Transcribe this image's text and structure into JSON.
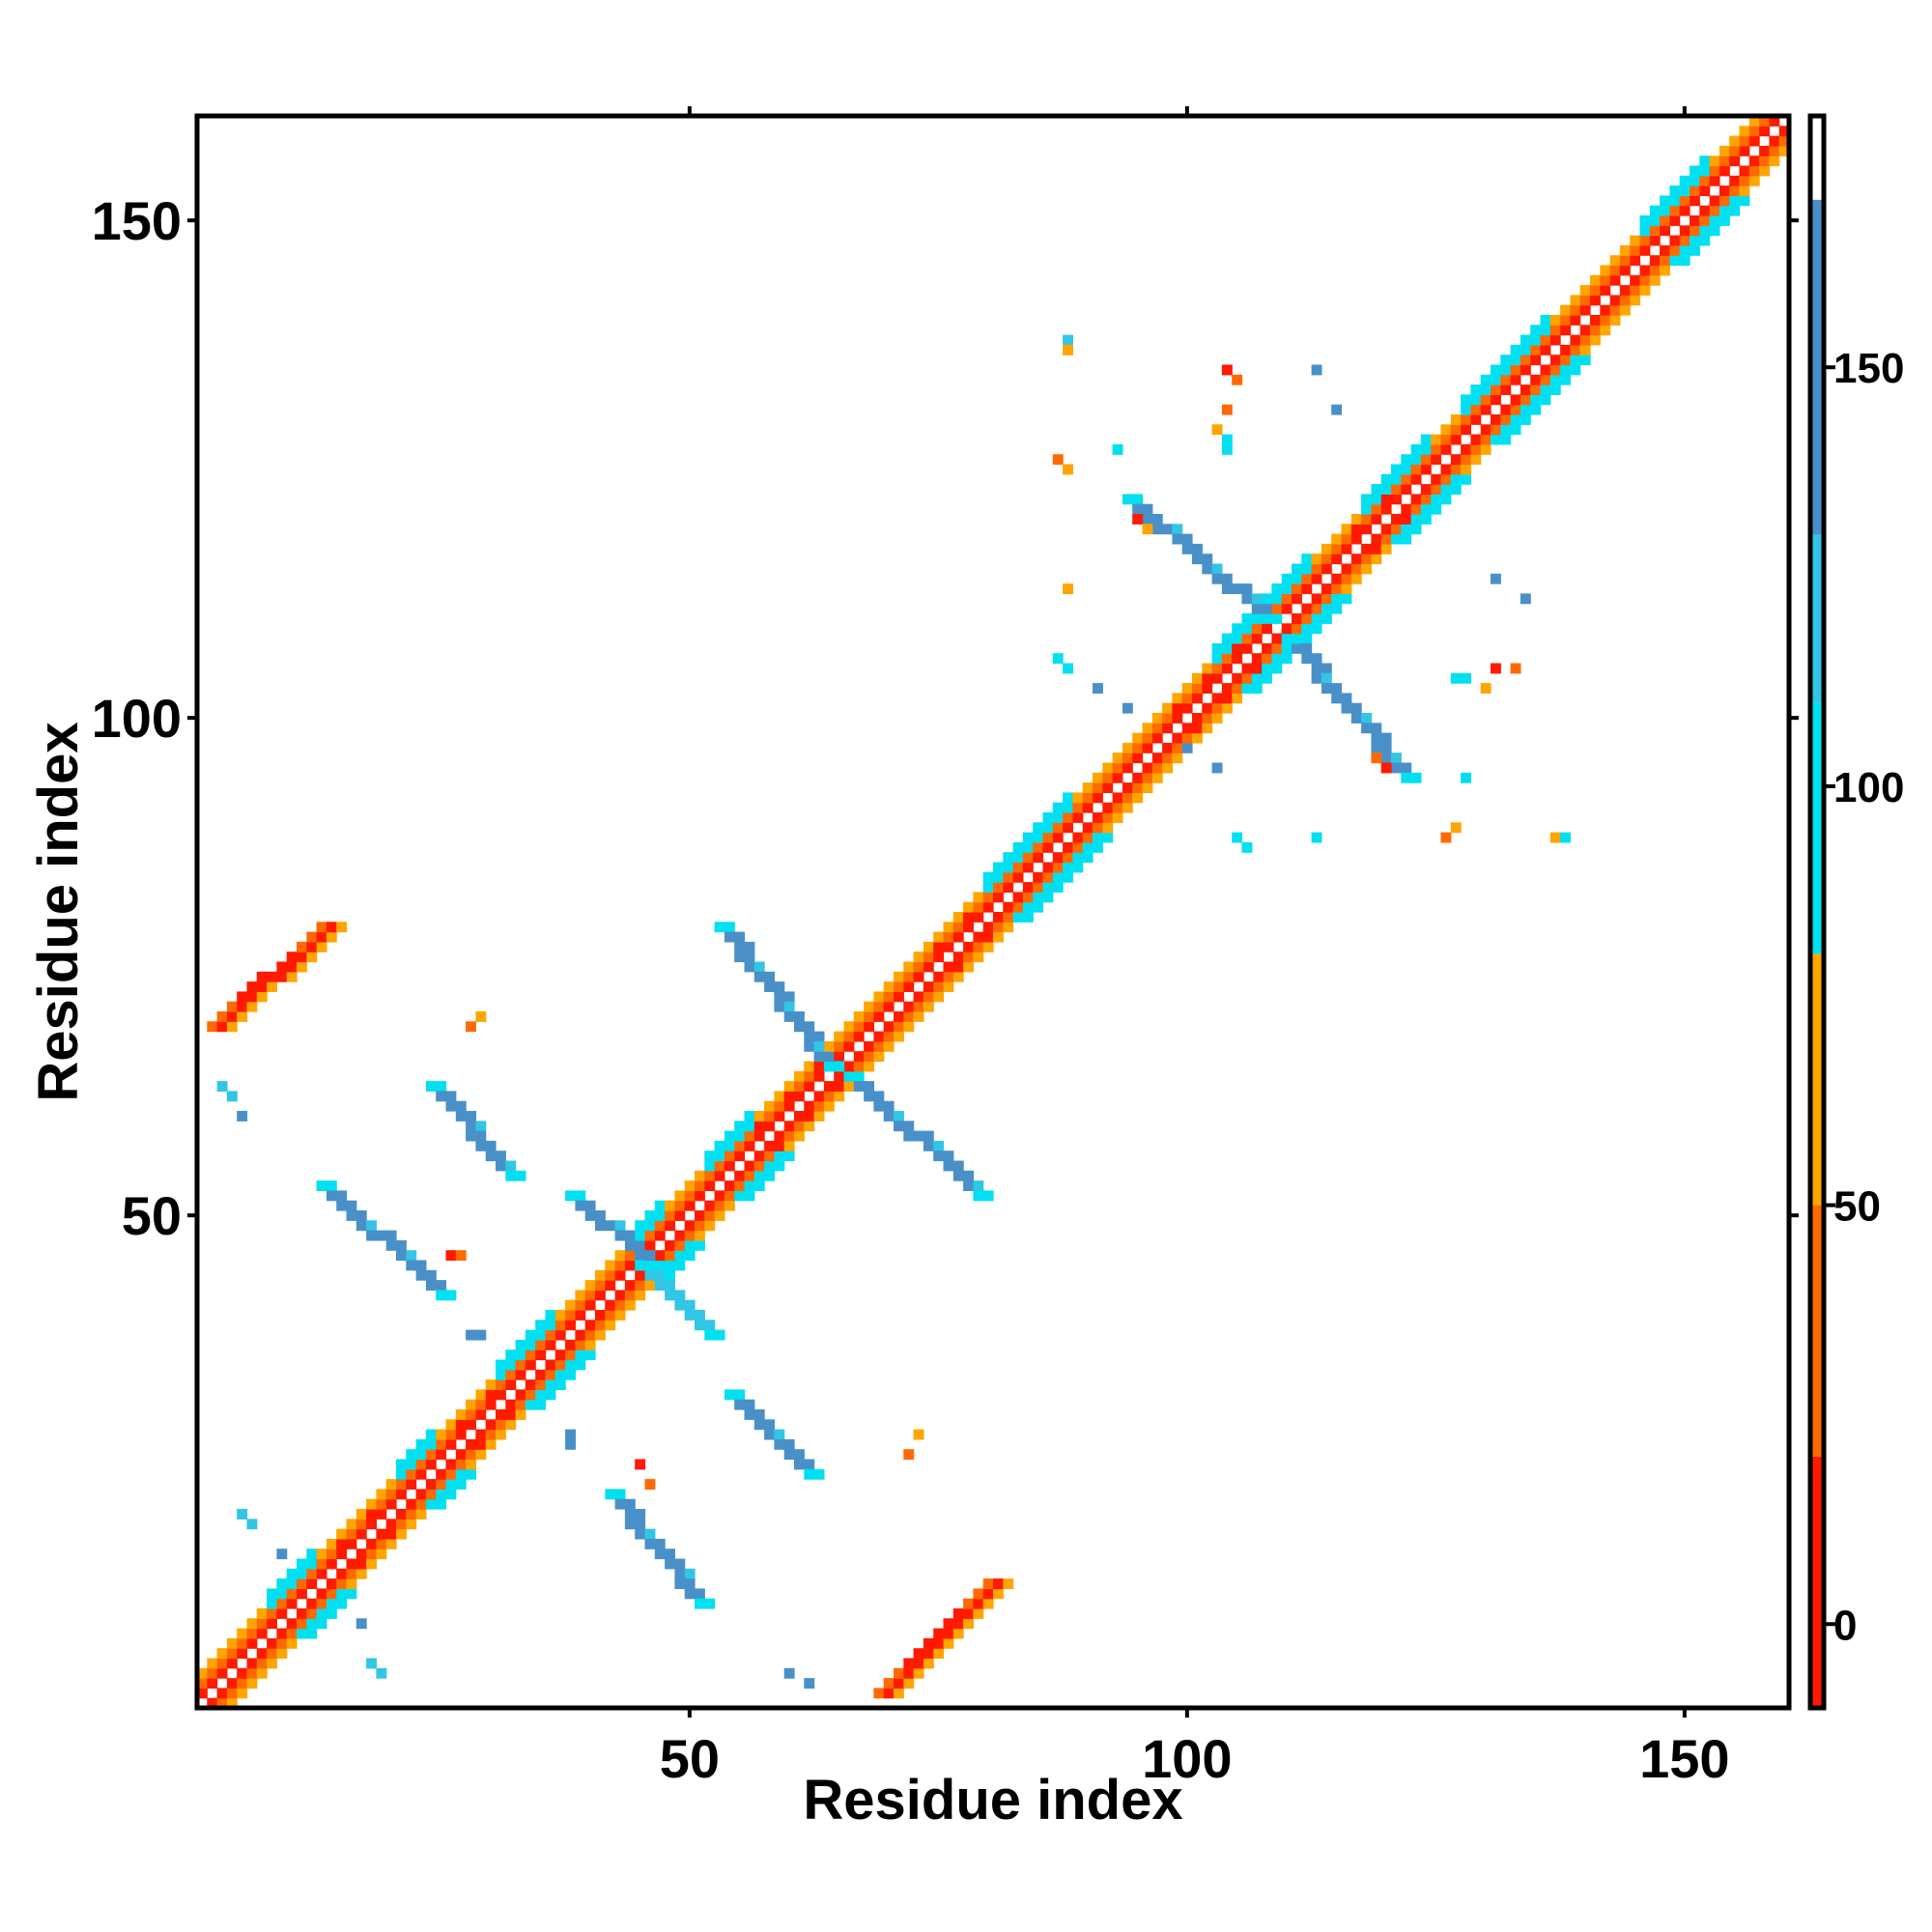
{
  "chart_data": {
    "type": "heatmap",
    "title": "",
    "xlabel": "Residue index",
    "ylabel": "Residue index",
    "xlim": [
      1,
      160
    ],
    "ylim": [
      1,
      160
    ],
    "x_ticks": [
      50,
      100,
      150
    ],
    "y_ticks": [
      50,
      100,
      150
    ],
    "grid": false,
    "colorbar": {
      "range": [
        -10,
        180
      ],
      "ticks": [
        0,
        50,
        100,
        150
      ],
      "segments": [
        {
          "from": -10,
          "to": 20,
          "color": "#ff1a00"
        },
        {
          "from": 20,
          "to": 50,
          "color": "#ff6a00"
        },
        {
          "from": 50,
          "to": 80,
          "color": "#ffa500"
        },
        {
          "from": 80,
          "to": 110,
          "color": "#00e0f0"
        },
        {
          "from": 110,
          "to": 130,
          "color": "#33c5e5"
        },
        {
          "from": 130,
          "to": 170,
          "color": "#4a90c8"
        },
        {
          "from": 170,
          "to": 180,
          "color": "#ffffff"
        }
      ]
    },
    "color_classes": {
      "R": "#ff1a00",
      "O": "#ff6a00",
      "A": "#ffa500",
      "C": "#00e0f0",
      "L": "#33c5e5",
      "B": "#4a90c8"
    },
    "diagonal": {
      "from": 1,
      "to": 160,
      "bands": [
        {
          "offset": 1,
          "color": "R"
        },
        {
          "offset": 2,
          "color": "O"
        },
        {
          "offset": 3,
          "color": "A"
        }
      ],
      "cyan_segments": [
        [
          8,
          12
        ],
        [
          21,
          24
        ],
        [
          31,
          36
        ],
        [
          44,
          47
        ],
        [
          52,
          56
        ],
        [
          80,
          88
        ],
        [
          103,
          112
        ],
        [
          118,
          124
        ],
        [
          128,
          136
        ],
        [
          146,
          152
        ]
      ],
      "red_segments": [
        [
          14,
          19
        ],
        [
          25,
          30
        ],
        [
          56,
          64
        ],
        [
          74,
          78
        ],
        [
          98,
          107
        ],
        [
          117,
          120
        ]
      ]
    },
    "regions": [
      {
        "name": "beta-sheet-antiparallel-1",
        "color": "B",
        "x": [
          38,
          46
        ],
        "y": [
          45,
          52
        ],
        "direction": "anti",
        "width": 2
      },
      {
        "name": "beta-sheet-antiparallel-2",
        "color": "L",
        "x": [
          45,
          52
        ],
        "y": [
          38,
          45
        ],
        "direction": "anti",
        "width": 2
      },
      {
        "name": "beta-sheet-antiparallel-3",
        "color": "B",
        "x": [
          53,
          64
        ],
        "y": [
          65,
          79
        ],
        "direction": "anti",
        "width": 2
      },
      {
        "name": "beta-sheet-antiparallel-4",
        "color": "B",
        "x": [
          66,
          79
        ],
        "y": [
          52,
          64
        ],
        "direction": "anti",
        "width": 2
      },
      {
        "name": "beta-sheet-antiparallel-5",
        "color": "B",
        "x": [
          94,
          108
        ],
        "y": [
          110,
          122
        ],
        "direction": "anti",
        "width": 2
      },
      {
        "name": "beta-sheet-antiparallel-6",
        "color": "B",
        "x": [
          110,
          122
        ],
        "y": [
          94,
          108
        ],
        "direction": "anti",
        "width": 2
      },
      {
        "name": "beta-strand-pair-a",
        "color": "B",
        "x": [
          24,
          32
        ],
        "y": [
          54,
          63
        ],
        "direction": "anti",
        "width": 2
      },
      {
        "name": "beta-strand-pair-b",
        "color": "B",
        "x": [
          13,
          25
        ],
        "y": [
          42,
          53
        ],
        "direction": "anti",
        "width": 2
      },
      {
        "name": "beta-strand-pair-c",
        "color": "B",
        "x": [
          54,
          62
        ],
        "y": [
          24,
          32
        ],
        "direction": "anti",
        "width": 2
      },
      {
        "name": "beta-strand-pair-d",
        "color": "B",
        "x": [
          42,
          51
        ],
        "y": [
          11,
          22
        ],
        "direction": "anti",
        "width": 2
      },
      {
        "name": "parallel-contact-top",
        "color": "O",
        "x": [
          2,
          13
        ],
        "y": [
          69,
          79
        ],
        "direction": "par",
        "width": 3
      },
      {
        "name": "parallel-contact-bottom",
        "color": "O",
        "x": [
          69,
          80
        ],
        "y": [
          2,
          13
        ],
        "direction": "par",
        "width": 3
      }
    ],
    "specks": [
      {
        "x": 4,
        "y": 62,
        "color": "L"
      },
      {
        "x": 3,
        "y": 63,
        "color": "L"
      },
      {
        "x": 5,
        "y": 60,
        "color": "B"
      },
      {
        "x": 28,
        "y": 69,
        "color": "O"
      },
      {
        "x": 29,
        "y": 70,
        "color": "A"
      },
      {
        "x": 26,
        "y": 46,
        "color": "R"
      },
      {
        "x": 27,
        "y": 46,
        "color": "O"
      },
      {
        "x": 28,
        "y": 38,
        "color": "B"
      },
      {
        "x": 29,
        "y": 38,
        "color": "B"
      },
      {
        "x": 38,
        "y": 28,
        "color": "B"
      },
      {
        "x": 38,
        "y": 27,
        "color": "B"
      },
      {
        "x": 5,
        "y": 20,
        "color": "L"
      },
      {
        "x": 6,
        "y": 19,
        "color": "L"
      },
      {
        "x": 9,
        "y": 16,
        "color": "B"
      },
      {
        "x": 17,
        "y": 9,
        "color": "B"
      },
      {
        "x": 18,
        "y": 5,
        "color": "L"
      },
      {
        "x": 19,
        "y": 4,
        "color": "L"
      },
      {
        "x": 60,
        "y": 4,
        "color": "B"
      },
      {
        "x": 62,
        "y": 3,
        "color": "B"
      },
      {
        "x": 45,
        "y": 25,
        "color": "R"
      },
      {
        "x": 46,
        "y": 23,
        "color": "O"
      },
      {
        "x": 73,
        "y": 28,
        "color": "A"
      },
      {
        "x": 72,
        "y": 26,
        "color": "O"
      },
      {
        "x": 88,
        "y": 138,
        "color": "L"
      },
      {
        "x": 88,
        "y": 137,
        "color": "A"
      },
      {
        "x": 104,
        "y": 135,
        "color": "R"
      },
      {
        "x": 105,
        "y": 134,
        "color": "O"
      },
      {
        "x": 104,
        "y": 131,
        "color": "O"
      },
      {
        "x": 103,
        "y": 129,
        "color": "A"
      },
      {
        "x": 104,
        "y": 128,
        "color": "C"
      },
      {
        "x": 104,
        "y": 127,
        "color": "C"
      },
      {
        "x": 113,
        "y": 135,
        "color": "B"
      },
      {
        "x": 115,
        "y": 131,
        "color": "B"
      },
      {
        "x": 87,
        "y": 126,
        "color": "O"
      },
      {
        "x": 88,
        "y": 125,
        "color": "A"
      },
      {
        "x": 93,
        "y": 127,
        "color": "C"
      },
      {
        "x": 95,
        "y": 120,
        "color": "R"
      },
      {
        "x": 96,
        "y": 119,
        "color": "A"
      },
      {
        "x": 88,
        "y": 113,
        "color": "A"
      },
      {
        "x": 87,
        "y": 106,
        "color": "C"
      },
      {
        "x": 88,
        "y": 105,
        "color": "C"
      },
      {
        "x": 91,
        "y": 103,
        "color": "B"
      },
      {
        "x": 94,
        "y": 101,
        "color": "B"
      },
      {
        "x": 100,
        "y": 97,
        "color": "B"
      },
      {
        "x": 103,
        "y": 95,
        "color": "B"
      },
      {
        "x": 105,
        "y": 88,
        "color": "C"
      },
      {
        "x": 106,
        "y": 87,
        "color": "C"
      },
      {
        "x": 113,
        "y": 88,
        "color": "C"
      },
      {
        "x": 119,
        "y": 96,
        "color": "O"
      },
      {
        "x": 120,
        "y": 95,
        "color": "R"
      },
      {
        "x": 127,
        "y": 89,
        "color": "A"
      },
      {
        "x": 126,
        "y": 88,
        "color": "O"
      },
      {
        "x": 128,
        "y": 94,
        "color": "C"
      },
      {
        "x": 137,
        "y": 88,
        "color": "A"
      },
      {
        "x": 138,
        "y": 88,
        "color": "C"
      },
      {
        "x": 127,
        "y": 104,
        "color": "C"
      },
      {
        "x": 128,
        "y": 104,
        "color": "C"
      },
      {
        "x": 131,
        "y": 105,
        "color": "R"
      },
      {
        "x": 133,
        "y": 105,
        "color": "O"
      },
      {
        "x": 130,
        "y": 103,
        "color": "A"
      },
      {
        "x": 131,
        "y": 114,
        "color": "B"
      },
      {
        "x": 134,
        "y": 112,
        "color": "B"
      }
    ]
  }
}
